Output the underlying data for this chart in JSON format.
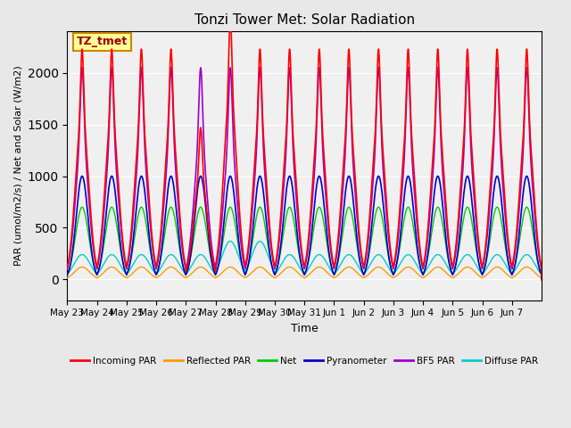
{
  "title": "Tonzi Tower Met: Solar Radiation",
  "ylabel": "PAR (umol/m2/s) / Net and Solar (W/m2)",
  "xlabel": "Time",
  "ylim": [
    -200,
    2400
  ],
  "bg_color": "#e8e8e8",
  "plot_bg_color": "#f0f0f0",
  "annotation_text": "TZ_tmet",
  "annotation_bg": "#ffff99",
  "annotation_border": "#cc8800",
  "xtick_labels": [
    "May 23",
    "May 24",
    "May 25",
    "May 26",
    "May 27",
    "May 28",
    "May 29",
    "May 30",
    "May 31",
    "Jun 1",
    "Jun 2",
    "Jun 3",
    "Jun 4",
    "Jun 5",
    "Jun 6",
    "Jun 7"
  ],
  "series": {
    "incoming_par": {
      "color": "#ff0000",
      "label": "Incoming PAR"
    },
    "reflected_par": {
      "color": "#ff9900",
      "label": "Reflected PAR"
    },
    "net": {
      "color": "#00cc00",
      "label": "Net"
    },
    "pyranometer": {
      "color": "#0000cc",
      "label": "Pyranometer"
    },
    "bf5_par": {
      "color": "#9900cc",
      "label": "BF5 PAR"
    },
    "diffuse_par": {
      "color": "#00cccc",
      "label": "Diffuse PAR"
    }
  },
  "n_days": 16,
  "points_per_day": 200
}
